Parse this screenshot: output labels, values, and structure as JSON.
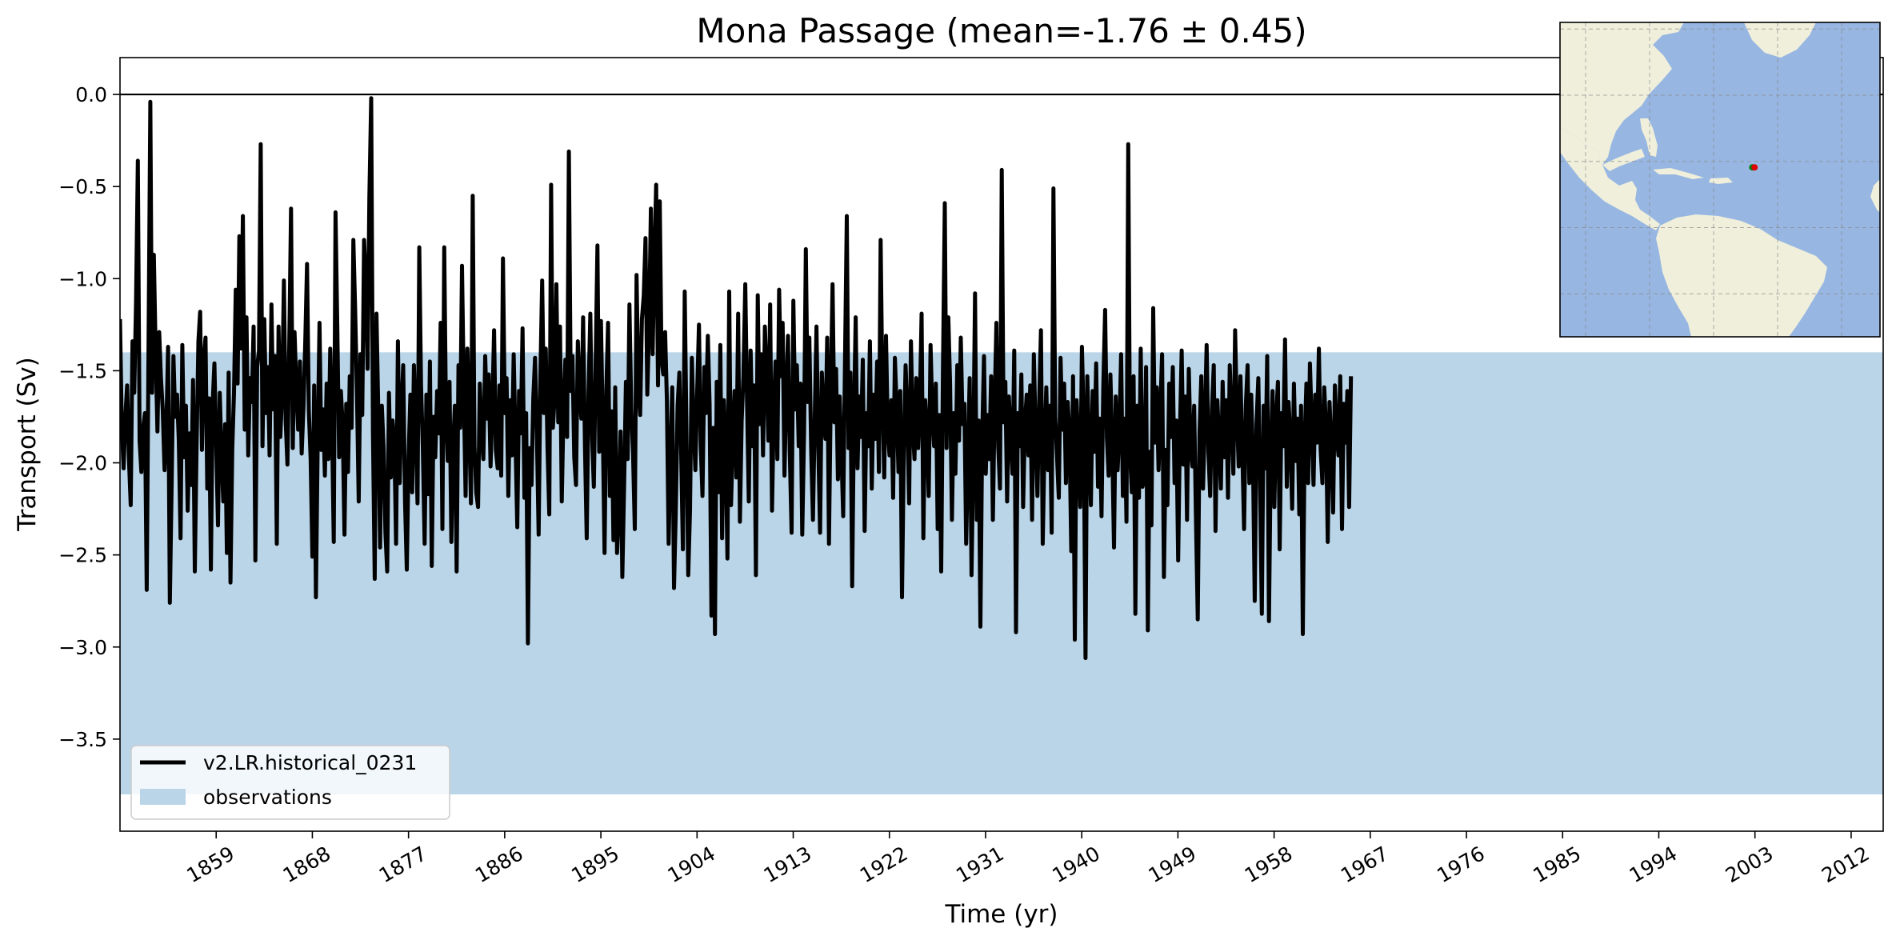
{
  "chart_data": {
    "type": "line",
    "title": "Mona Passage (mean=-1.76 ± 0.45)",
    "xlabel": "Time (yr)",
    "ylabel": "Transport (Sv)",
    "xlim": [
      1850,
      2015
    ],
    "ylim": [
      -4.0,
      0.2
    ],
    "xticks": [
      1859,
      1868,
      1877,
      1886,
      1895,
      1904,
      1913,
      1922,
      1931,
      1940,
      1949,
      1958,
      1967,
      1976,
      1985,
      1994,
      2003,
      2012
    ],
    "xtick_labels": [
      "1859",
      "1868",
      "1877",
      "1886",
      "1895",
      "1904",
      "1913",
      "1922",
      "1931",
      "1940",
      "1949",
      "1958",
      "1967",
      "1976",
      "1985",
      "1994",
      "2003",
      "2012"
    ],
    "yticks": [
      0.0,
      -0.5,
      -1.0,
      -1.5,
      -2.0,
      -2.5,
      -3.0,
      -3.5
    ],
    "ytick_labels": [
      "0.0",
      "−0.5",
      "−1.0",
      "−1.5",
      "−2.0",
      "−2.5",
      "−3.0",
      "−3.5"
    ],
    "reference_line": {
      "y": 0.0,
      "color": "#000000"
    },
    "observations_band": {
      "name": "observations",
      "y_min": -3.8,
      "y_max": -1.4,
      "color": "#bad5e8"
    },
    "series": [
      {
        "name": "v2.LR.historical_0231",
        "color": "#000000",
        "x_start": 1850.0,
        "x_step": 0.1667,
        "values": [
          -1.22,
          -1.79,
          -2.03,
          -1.75,
          -1.58,
          -1.97,
          -2.23,
          -1.34,
          -1.62,
          -1.14,
          -0.36,
          -1.88,
          -2.05,
          -1.81,
          -1.73,
          -2.69,
          -1.41,
          -0.04,
          -1.62,
          -0.87,
          -1.38,
          -1.83,
          -1.29,
          -1.54,
          -1.71,
          -2.04,
          -1.82,
          -1.37,
          -2.76,
          -2.11,
          -1.42,
          -1.75,
          -1.63,
          -1.88,
          -2.41,
          -1.36,
          -1.97,
          -1.69,
          -2.26,
          -1.84,
          -2.12,
          -1.55,
          -2.59,
          -1.92,
          -1.34,
          -1.18,
          -1.93,
          -1.44,
          -1.32,
          -2.14,
          -1.65,
          -2.58,
          -1.68,
          -1.46,
          -1.89,
          -2.34,
          -1.62,
          -1.96,
          -2.21,
          -1.79,
          -2.49,
          -1.51,
          -2.65,
          -1.93,
          -1.62,
          -1.06,
          -1.57,
          -0.77,
          -1.38,
          -0.66,
          -1.82,
          -1.21,
          -1.96,
          -1.54,
          -1.67,
          -1.26,
          -2.53,
          -1.48,
          -1.39,
          -0.27,
          -1.91,
          -1.22,
          -1.73,
          -1.48,
          -1.96,
          -1.14,
          -1.71,
          -1.42,
          -2.44,
          -1.26,
          -1.86,
          -1.63,
          -1.01,
          -1.77,
          -2.01,
          -1.38,
          -0.62,
          -1.92,
          -1.29,
          -1.59,
          -1.82,
          -1.45,
          -1.95,
          -1.69,
          -1.34,
          -0.92,
          -1.71,
          -1.98,
          -2.51,
          -1.58,
          -2.73,
          -1.86,
          -1.24,
          -1.93,
          -1.71,
          -2.07,
          -1.57,
          -1.98,
          -1.38,
          -1.79,
          -2.43,
          -0.64,
          -1.28,
          -1.97,
          -1.61,
          -1.79,
          -2.39,
          -1.68,
          -2.05,
          -1.53,
          -1.81,
          -0.79,
          -1.16,
          -1.62,
          -2.21,
          -1.41,
          -1.74,
          -0.79,
          -1.01,
          -1.49,
          -0.56,
          -0.02,
          -1.84,
          -2.63,
          -1.19,
          -1.73,
          -2.46,
          -1.69,
          -1.93,
          -2.38,
          -2.59,
          -1.62,
          -2.08,
          -1.77,
          -1.89,
          -2.44,
          -1.34,
          -2.11,
          -1.71,
          -1.47,
          -2.21,
          -2.58,
          -1.97,
          -1.63,
          -2.16,
          -1.47,
          -1.79,
          -2.22,
          -0.83,
          -1.58,
          -1.91,
          -2.44,
          -1.63,
          -2.17,
          -1.45,
          -2.56,
          -1.75,
          -1.97,
          -1.61,
          -1.84,
          -1.24,
          -2.36,
          -0.83,
          -1.75,
          -1.99,
          -1.56,
          -2.43,
          -1.91,
          -1.69,
          -2.59,
          -1.47,
          -1.81,
          -0.93,
          -1.63,
          -2.18,
          -1.38,
          -1.78,
          -2.22,
          -0.55,
          -1.91,
          -2.16,
          -2.24,
          -1.57,
          -1.84,
          -1.98,
          -1.42,
          -1.76,
          -1.52,
          -2.02,
          -1.71,
          -1.28,
          -1.93,
          -2.03,
          -1.58,
          -2.07,
          -0.89,
          -1.73,
          -1.54,
          -2.18,
          -1.66,
          -1.96,
          -1.41,
          -1.87,
          -2.35,
          -1.61,
          -1.84,
          -1.27,
          -2.19,
          -1.73,
          -2.98,
          -1.92,
          -2.12,
          -1.65,
          -1.43,
          -1.82,
          -2.39,
          -1.53,
          -1.01,
          -1.73,
          -1.38,
          -1.92,
          -2.28,
          -0.49,
          -1.81,
          -1.64,
          -1.03,
          -1.78,
          -1.26,
          -2.21,
          -1.69,
          -1.44,
          -1.86,
          -0.31,
          -1.61,
          -1.42,
          -1.97,
          -2.12,
          -1.34,
          -1.63,
          -1.76,
          -1.21,
          -1.91,
          -2.41,
          -1.63,
          -1.19,
          -1.86,
          -2.13,
          -1.47,
          -0.82,
          -1.94,
          -1.23,
          -1.79,
          -2.49,
          -1.61,
          -1.24,
          -2.18,
          -1.72,
          -2.42,
          -1.59,
          -2.49,
          -2.27,
          -1.83,
          -2.62,
          -2.11,
          -1.56,
          -1.98,
          -1.14,
          -1.71,
          -1.95,
          -2.36,
          -0.98,
          -1.59,
          -1.74,
          -1.22,
          -1.09,
          -0.78,
          -1.63,
          -1.27,
          -0.62,
          -1.41,
          -0.89,
          -0.49,
          -1.58,
          -0.58,
          -1.44,
          -1.52,
          -1.29,
          -1.66,
          -2.44,
          -1.96,
          -1.59,
          -2.68,
          -2.27,
          -1.69,
          -1.51,
          -1.93,
          -2.47,
          -1.07,
          -1.84,
          -2.61,
          -2.26,
          -1.43,
          -1.78,
          -2.04,
          -1.61,
          -1.25,
          -1.91,
          -2.18,
          -1.48,
          -1.73,
          -1.31,
          -1.68,
          -2.83,
          -1.81,
          -2.93,
          -1.56,
          -2.16,
          -1.36,
          -2.41,
          -1.66,
          -1.93,
          -2.52,
          -1.07,
          -2.23,
          -1.87,
          -1.61,
          -2.08,
          -1.19,
          -2.32,
          -1.77,
          -1.53,
          -1.03,
          -1.67,
          -2.21,
          -1.39,
          -1.91,
          -1.58,
          -2.61,
          -1.09,
          -1.79,
          -1.41,
          -1.96,
          -1.26,
          -1.53,
          -1.88,
          -1.14,
          -2.26,
          -1.73,
          -1.45,
          -1.98,
          -1.06,
          -1.53,
          -1.24,
          -2.07,
          -1.62,
          -1.31,
          -1.94,
          -2.38,
          -1.12,
          -1.71,
          -1.47,
          -1.91,
          -1.57,
          -2.39,
          -1.83,
          -0.84,
          -1.67,
          -1.32,
          -1.94,
          -2.31,
          -1.76,
          -1.26,
          -1.92,
          -2.38,
          -1.51,
          -1.74,
          -1.87,
          -1.32,
          -2.44,
          -1.61,
          -1.03,
          -1.78,
          -1.49,
          -2.09,
          -1.64,
          -1.95,
          -2.29,
          -1.43,
          -0.66,
          -1.92,
          -1.51,
          -2.67,
          -1.76,
          -1.21,
          -2.03,
          -1.64,
          -1.86,
          -1.44,
          -2.37,
          -1.73,
          -1.91,
          -1.34,
          -2.14,
          -1.63,
          -1.87,
          -1.45,
          -2.05,
          -0.79,
          -1.62,
          -2.08,
          -1.31,
          -1.82,
          -1.96,
          -1.66,
          -2.19,
          -1.43,
          -1.69,
          -2.05,
          -1.61,
          -2.73,
          -1.92,
          -1.47,
          -1.76,
          -2.22,
          -1.34,
          -1.81,
          -1.98,
          -1.54,
          -1.92,
          -1.68,
          -1.19,
          -2.41,
          -1.66,
          -1.82,
          -2.18,
          -1.36,
          -1.73,
          -1.91,
          -1.57,
          -2.36,
          -1.74,
          -2.59,
          -1.49,
          -0.59,
          -1.92,
          -1.21,
          -1.57,
          -2.31,
          -1.73,
          -2.06,
          -1.47,
          -1.88,
          -1.32,
          -1.79,
          -1.68,
          -2.44,
          -1.97,
          -1.54,
          -2.61,
          -1.96,
          -1.08,
          -2.31,
          -1.77,
          -2.89,
          -1.86,
          -1.42,
          -2.06,
          -1.74,
          -1.98,
          -1.53,
          -2.31,
          -1.69,
          -1.24,
          -1.91,
          -2.14,
          -0.41,
          -1.78,
          -1.56,
          -2.21,
          -1.64,
          -1.86,
          -2.06,
          -1.39,
          -2.92,
          -1.73,
          -1.91,
          -1.52,
          -2.24,
          -1.78,
          -1.63,
          -1.96,
          -1.58,
          -2.31,
          -1.41,
          -1.84,
          -2.18,
          -1.67,
          -1.28,
          -2.44,
          -1.89,
          -1.59,
          -2.04,
          -1.69,
          -2.38,
          -0.51,
          -1.75,
          -1.96,
          -2.19,
          -1.43,
          -1.82,
          -1.57,
          -2.11,
          -1.67,
          -1.84,
          -2.48,
          -1.53,
          -2.96,
          -1.66,
          -1.92,
          -2.24,
          -1.37,
          -1.76,
          -3.06,
          -1.53,
          -1.89,
          -2.23,
          -1.61,
          -1.94,
          -1.46,
          -2.13,
          -1.76,
          -2.29,
          -1.59,
          -1.17,
          -1.86,
          -2.07,
          -1.52,
          -1.91,
          -2.46,
          -1.64,
          -2.04,
          -1.83,
          -1.41,
          -2.18,
          -1.76,
          -2.32,
          -0.27,
          -1.94,
          -2.16,
          -1.53,
          -2.82,
          -1.69,
          -2.19,
          -1.38,
          -2.13,
          -2.09,
          -1.48,
          -2.91,
          -1.94,
          -2.34,
          -1.16,
          -1.89,
          -1.59,
          -2.04,
          -1.71,
          -1.41,
          -2.62,
          -1.93,
          -2.23,
          -1.57,
          -1.86,
          -1.48,
          -2.11,
          -1.77,
          -2.53,
          -1.83,
          -1.39,
          -2.01,
          -1.64,
          -2.31,
          -1.49,
          -1.93,
          -2.02,
          -1.69,
          -2.29,
          -2.85,
          -1.84,
          -1.53,
          -2.14,
          -1.76,
          -1.36,
          -1.94,
          -2.18,
          -1.71,
          -1.47,
          -2.37,
          -1.66,
          -1.89,
          -2.14,
          -1.56,
          -1.97,
          -1.66,
          -2.19,
          -1.47,
          -1.79,
          -2.06,
          -1.28,
          -1.74,
          -2.02,
          -1.53,
          -1.92,
          -2.36,
          -1.69,
          -1.47,
          -2.11,
          -1.63,
          -1.97,
          -2.75,
          -1.79,
          -1.54,
          -2.12,
          -2.82,
          -1.69,
          -2.03,
          -1.42,
          -2.86,
          -1.93,
          -1.61,
          -2.24,
          -1.77,
          -1.56,
          -2.47,
          -1.73,
          -1.91,
          -1.33,
          -2.13,
          -1.67,
          -1.86,
          -2.25,
          -1.57,
          -1.99,
          -1.76,
          -2.28,
          -1.69,
          -2.93,
          -1.88,
          -1.57,
          -2.11,
          -1.46,
          -1.79,
          -2.12,
          -1.63,
          -1.89,
          -1.38,
          -1.93,
          -2.11,
          -1.59,
          -1.81,
          -2.43,
          -1.67,
          -1.91,
          -2.27,
          -1.58,
          -1.84,
          -1.96,
          -1.53,
          -2.36,
          -1.68,
          -1.89,
          -1.61,
          -2.24,
          -1.53
        ]
      }
    ],
    "legend": {
      "placement": "lower-left",
      "entries": [
        "v2.LR.historical_0231",
        "observations"
      ]
    },
    "inset_map": {
      "placement": "top-right",
      "land_color": "#efefdc",
      "ocean_color": "#97b6e1",
      "markers": [
        {
          "color": "#008000",
          "lon": -67.9,
          "lat": 18.2
        },
        {
          "color": "#e00000",
          "lon": -67.2,
          "lat": 18.2
        }
      ]
    }
  }
}
